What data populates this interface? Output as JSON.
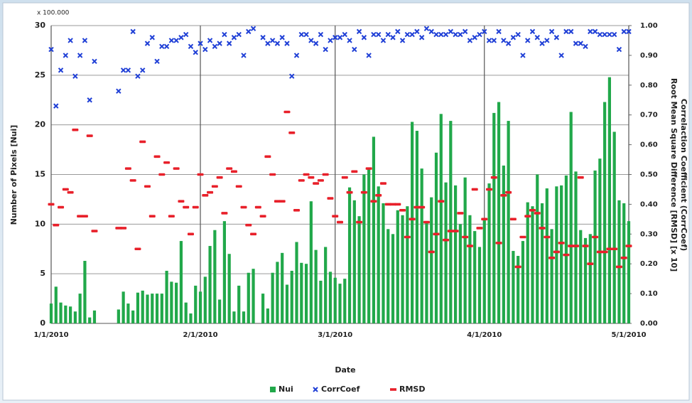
{
  "chart_data": {
    "type": "bar",
    "y_unit_label": "x 100.000",
    "xlabel": "Date",
    "ylabel": "Number of Pixels [Nui]",
    "y2label": [
      "Correlaction Coefficient (CorrCoef)",
      "Root Mean Square Difference [RMSD] [x 10]"
    ],
    "xlim": [
      "1/1/2010",
      "5/1/2010"
    ],
    "xticks": [
      "1/1/2010",
      "2/1/2010",
      "3/1/2010",
      "4/1/2010",
      "5/1/2010"
    ],
    "ylim": [
      0,
      30
    ],
    "yticks": [
      0,
      5,
      10,
      15,
      20,
      25,
      30
    ],
    "y2lim": [
      0,
      1
    ],
    "y2ticks": [
      {
        "value": 0,
        "label": "0.00"
      },
      {
        "value": 0.1,
        "label": "0.10"
      },
      {
        "value": 0.2,
        "label": "0.20"
      },
      {
        "value": 0.3,
        "label": "0.30"
      },
      {
        "value": 0.4,
        "label": "0.40"
      },
      {
        "value": 0.5,
        "label": "0.50"
      },
      {
        "value": 0.6,
        "label": "0.60"
      },
      {
        "value": 0.7,
        "label": "0.70"
      },
      {
        "value": 0.8,
        "label": "0.80"
      },
      {
        "value": 0.9,
        "label": "0.90"
      },
      {
        "value": 1,
        "label": "1.00"
      }
    ],
    "grid": true,
    "legend": "bottom",
    "x": [
      "1/1/2010",
      "1/2/2010",
      "1/3/2010",
      "1/4/2010",
      "1/5/2010",
      "1/6/2010",
      "1/7/2010",
      "1/8/2010",
      "1/9/2010",
      "1/10/2010",
      "1/11/2010",
      "1/12/2010",
      "1/13/2010",
      "1/14/2010",
      "1/15/2010",
      "1/16/2010",
      "1/17/2010",
      "1/18/2010",
      "1/19/2010",
      "1/20/2010",
      "1/21/2010",
      "1/22/2010",
      "1/23/2010",
      "1/24/2010",
      "1/25/2010",
      "1/26/2010",
      "1/27/2010",
      "1/28/2010",
      "1/29/2010",
      "1/30/2010",
      "1/31/2010",
      "2/1/2010",
      "2/2/2010",
      "2/3/2010",
      "2/4/2010",
      "2/5/2010",
      "2/6/2010",
      "2/7/2010",
      "2/8/2010",
      "2/9/2010",
      "2/10/2010",
      "2/11/2010",
      "2/12/2010",
      "2/13/2010",
      "2/14/2010",
      "2/15/2010",
      "2/16/2010",
      "2/17/2010",
      "2/18/2010",
      "2/19/2010",
      "2/20/2010",
      "2/21/2010",
      "2/22/2010",
      "2/23/2010",
      "2/24/2010",
      "2/25/2010",
      "2/26/2010",
      "2/27/2010",
      "2/28/2010",
      "3/1/2010",
      "3/2/2010",
      "3/3/2010",
      "3/4/2010",
      "3/5/2010",
      "3/6/2010",
      "3/7/2010",
      "3/8/2010",
      "3/9/2010",
      "3/10/2010",
      "3/11/2010",
      "3/12/2010",
      "3/13/2010",
      "3/14/2010",
      "3/15/2010",
      "3/16/2010",
      "3/17/2010",
      "3/18/2010",
      "3/19/2010",
      "3/20/2010",
      "3/21/2010",
      "3/22/2010",
      "3/23/2010",
      "3/24/2010",
      "3/25/2010",
      "3/26/2010",
      "3/27/2010",
      "3/28/2010",
      "3/29/2010",
      "3/30/2010",
      "3/31/2010",
      "4/1/2010",
      "4/2/2010",
      "4/3/2010",
      "4/4/2010",
      "4/5/2010",
      "4/6/2010",
      "4/7/2010",
      "4/8/2010",
      "4/9/2010",
      "4/10/2010",
      "4/11/2010",
      "4/12/2010",
      "4/13/2010",
      "4/14/2010",
      "4/15/2010",
      "4/16/2010",
      "4/17/2010",
      "4/18/2010",
      "4/19/2010",
      "4/20/2010",
      "4/21/2010",
      "4/22/2010",
      "4/23/2010",
      "4/24/2010",
      "4/25/2010",
      "4/26/2010",
      "4/27/2010",
      "4/28/2010",
      "4/29/2010",
      "4/30/2010",
      "5/1/2010"
    ],
    "series": [
      {
        "name": "Nui",
        "type": "bar",
        "color": "#21a84a",
        "values": [
          2.0,
          3.7,
          2.1,
          1.8,
          1.7,
          1.2,
          3.0,
          6.3,
          0.6,
          1.3,
          null,
          null,
          null,
          null,
          1.4,
          3.2,
          2.0,
          1.3,
          3.1,
          3.3,
          2.9,
          3.0,
          3.0,
          3.0,
          5.3,
          4.2,
          4.1,
          8.3,
          2.1,
          1.0,
          3.8,
          3.2,
          4.7,
          7.8,
          9.4,
          2.4,
          10.3,
          7.0,
          1.2,
          3.8,
          1.2,
          5.1,
          5.5,
          null,
          3.0,
          1.5,
          5.1,
          6.2,
          7.1,
          3.9,
          5.3,
          8.2,
          6.1,
          6.0,
          12.3,
          7.4,
          4.3,
          7.7,
          5.2,
          4.6,
          4.0,
          4.5,
          13.7,
          12.4,
          10.8,
          15.0,
          15.7,
          18.8,
          13.8,
          12.1,
          9.5,
          9.0,
          11.4,
          10.9,
          11.8,
          20.3,
          19.4,
          15.6,
          10.2,
          12.7,
          17.2,
          21.1,
          14.2,
          20.4,
          13.9,
          10.0,
          14.7,
          10.9,
          9.3,
          7.7,
          10.4,
          14.1,
          21.2,
          22.3,
          15.9,
          20.4,
          7.3,
          6.8,
          8.3,
          12.2,
          11.8,
          15.0,
          12.1,
          13.6,
          9.5,
          13.8,
          13.9,
          14.9,
          21.3,
          15.3,
          9.4,
          8.6,
          9.0,
          15.4,
          16.6,
          22.3,
          24.8,
          19.3,
          12.4,
          12.1,
          10.3
        ]
      },
      {
        "name": "CorrCoef",
        "type": "scatter",
        "marker": "x",
        "axis": "y2",
        "color": "#1f3fd6",
        "values": [
          0.92,
          0.73,
          0.85,
          0.9,
          0.95,
          0.83,
          0.9,
          0.95,
          0.75,
          0.88,
          null,
          null,
          null,
          null,
          0.78,
          0.85,
          0.85,
          0.98,
          0.83,
          0.85,
          0.94,
          0.96,
          0.88,
          0.93,
          0.93,
          0.95,
          0.95,
          0.96,
          0.97,
          0.93,
          0.91,
          0.94,
          0.92,
          0.95,
          0.93,
          0.94,
          0.97,
          0.94,
          0.96,
          0.97,
          0.9,
          0.98,
          0.99,
          null,
          0.96,
          0.94,
          0.95,
          0.94,
          0.96,
          0.94,
          0.83,
          0.9,
          0.97,
          0.97,
          0.95,
          0.94,
          0.97,
          0.92,
          0.95,
          0.96,
          0.96,
          0.97,
          0.95,
          0.92,
          0.98,
          0.96,
          0.9,
          0.97,
          0.97,
          0.95,
          0.97,
          0.96,
          0.98,
          0.95,
          0.97,
          0.97,
          0.98,
          0.96,
          0.99,
          0.98,
          0.97,
          0.97,
          0.97,
          0.98,
          0.97,
          0.97,
          0.98,
          0.95,
          0.96,
          0.97,
          0.98,
          0.95,
          0.95,
          0.98,
          0.95,
          0.94,
          0.96,
          0.97,
          0.9,
          0.95,
          0.98,
          0.96,
          0.94,
          0.95,
          0.98,
          0.96,
          0.9,
          0.98,
          0.98,
          0.94,
          0.94,
          0.93,
          0.98,
          0.98,
          0.97,
          0.97,
          0.97,
          0.97,
          0.92,
          0.98,
          0.98
        ]
      },
      {
        "name": "RMSD",
        "type": "scatter",
        "marker": "dash",
        "axis": "y2",
        "color": "#e8202a",
        "values": [
          0.4,
          0.33,
          0.39,
          0.45,
          0.44,
          0.65,
          0.36,
          0.36,
          0.63,
          0.31,
          null,
          null,
          null,
          null,
          0.32,
          0.32,
          0.52,
          0.48,
          0.25,
          0.61,
          0.46,
          0.36,
          0.56,
          0.5,
          0.54,
          0.36,
          0.52,
          0.41,
          0.39,
          0.3,
          0.39,
          0.5,
          0.43,
          0.44,
          0.46,
          0.49,
          0.37,
          0.52,
          0.51,
          0.46,
          0.39,
          0.33,
          0.3,
          0.39,
          0.36,
          0.56,
          0.5,
          0.41,
          0.41,
          0.71,
          0.64,
          0.38,
          0.48,
          0.5,
          0.49,
          0.47,
          0.48,
          0.5,
          0.42,
          0.36,
          0.34,
          0.49,
          0.44,
          0.51,
          0.34,
          0.44,
          0.52,
          0.41,
          0.43,
          0.47,
          0.4,
          0.4,
          0.4,
          0.38,
          0.29,
          0.35,
          0.39,
          0.39,
          0.34,
          0.24,
          0.3,
          0.41,
          0.28,
          0.31,
          0.31,
          0.37,
          0.29,
          0.26,
          0.45,
          0.32,
          0.35,
          0.45,
          0.49,
          0.27,
          0.43,
          0.44,
          0.35,
          0.19,
          0.29,
          0.36,
          0.38,
          0.37,
          0.32,
          0.29,
          0.22,
          0.24,
          0.27,
          0.23,
          0.26,
          0.26,
          0.49,
          0.26,
          0.2,
          0.29,
          0.24,
          0.24,
          0.25,
          0.25,
          0.19,
          0.22,
          0.26
        ]
      }
    ]
  }
}
